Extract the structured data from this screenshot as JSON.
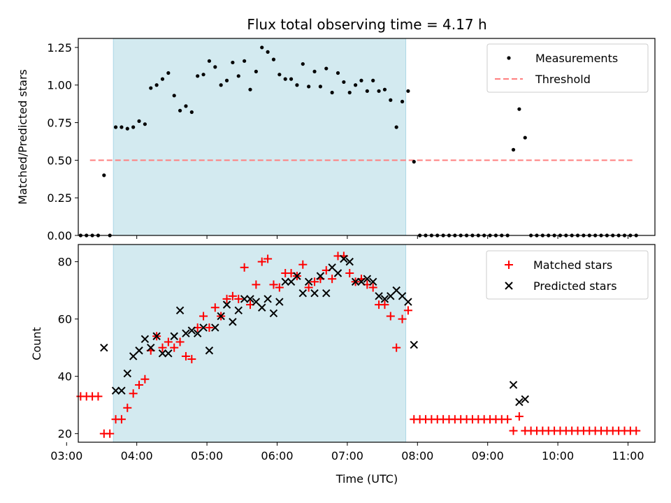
{
  "chart_data": [
    {
      "type": "scatter",
      "title": "Flux total observing time = 4.17 h",
      "xlabel": "",
      "ylabel": "Matched/Predicted stars",
      "xlim": [
        "03:00",
        "11:30"
      ],
      "ylim": [
        0,
        1.31
      ],
      "yticks": [
        "0.00",
        "0.25",
        "0.50",
        "0.75",
        "1.00",
        "1.25"
      ],
      "shaded_span": [
        "03:40",
        "07:50"
      ],
      "shaded_color": "#d3eaf0",
      "legend_position": "top-right",
      "series": [
        {
          "name": "Measurements",
          "marker": "dot",
          "color": "#000000",
          "points": [
            [
              "03:12",
              0
            ],
            [
              "03:17",
              0
            ],
            [
              "03:22",
              0
            ],
            [
              "03:27",
              0
            ],
            [
              "03:32",
              0.4
            ],
            [
              "03:37",
              0
            ],
            [
              "03:42",
              0.72
            ],
            [
              "03:47",
              0.72
            ],
            [
              "03:52",
              0.71
            ],
            [
              "03:57",
              0.72
            ],
            [
              "04:02",
              0.76
            ],
            [
              "04:07",
              0.74
            ],
            [
              "04:12",
              0.98
            ],
            [
              "04:17",
              1.0
            ],
            [
              "04:22",
              1.04
            ],
            [
              "04:27",
              1.08
            ],
            [
              "04:32",
              0.93
            ],
            [
              "04:37",
              0.83
            ],
            [
              "04:42",
              0.86
            ],
            [
              "04:47",
              0.82
            ],
            [
              "04:52",
              1.06
            ],
            [
              "04:57",
              1.07
            ],
            [
              "05:02",
              1.16
            ],
            [
              "05:07",
              1.12
            ],
            [
              "05:12",
              1.0
            ],
            [
              "05:17",
              1.03
            ],
            [
              "05:22",
              1.15
            ],
            [
              "05:27",
              1.06
            ],
            [
              "05:32",
              1.16
            ],
            [
              "05:37",
              0.97
            ],
            [
              "05:42",
              1.09
            ],
            [
              "05:47",
              1.25
            ],
            [
              "05:52",
              1.22
            ],
            [
              "05:57",
              1.17
            ],
            [
              "06:02",
              1.07
            ],
            [
              "06:07",
              1.04
            ],
            [
              "06:12",
              1.04
            ],
            [
              "06:17",
              1.0
            ],
            [
              "06:22",
              1.14
            ],
            [
              "06:27",
              0.99
            ],
            [
              "06:32",
              1.09
            ],
            [
              "06:37",
              0.99
            ],
            [
              "06:42",
              1.11
            ],
            [
              "06:47",
              0.95
            ],
            [
              "06:52",
              1.08
            ],
            [
              "06:57",
              1.02
            ],
            [
              "07:02",
              0.95
            ],
            [
              "07:07",
              1.0
            ],
            [
              "07:12",
              1.03
            ],
            [
              "07:17",
              0.96
            ],
            [
              "07:22",
              1.03
            ],
            [
              "07:27",
              0.96
            ],
            [
              "07:32",
              0.97
            ],
            [
              "07:37",
              0.9
            ],
            [
              "07:42",
              0.72
            ],
            [
              "07:47",
              0.89
            ],
            [
              "07:52",
              0.96
            ],
            [
              "07:57",
              0.49
            ],
            [
              "08:02",
              0
            ],
            [
              "08:07",
              0
            ],
            [
              "08:12",
              0
            ],
            [
              "08:17",
              0
            ],
            [
              "08:22",
              0
            ],
            [
              "08:27",
              0
            ],
            [
              "08:32",
              0
            ],
            [
              "08:37",
              0
            ],
            [
              "08:42",
              0
            ],
            [
              "08:47",
              0
            ],
            [
              "08:52",
              0
            ],
            [
              "08:57",
              0
            ],
            [
              "09:02",
              0
            ],
            [
              "09:07",
              0
            ],
            [
              "09:12",
              0
            ],
            [
              "09:17",
              0
            ],
            [
              "09:22",
              0.57
            ],
            [
              "09:27",
              0.84
            ],
            [
              "09:32",
              0.65
            ],
            [
              "09:37",
              0
            ],
            [
              "09:42",
              0
            ],
            [
              "09:47",
              0
            ],
            [
              "09:52",
              0
            ],
            [
              "09:57",
              0
            ],
            [
              "10:02",
              0
            ],
            [
              "10:07",
              0
            ],
            [
              "10:12",
              0
            ],
            [
              "10:17",
              0
            ],
            [
              "10:22",
              0
            ],
            [
              "10:27",
              0
            ],
            [
              "10:32",
              0
            ],
            [
              "10:37",
              0
            ],
            [
              "10:42",
              0
            ],
            [
              "10:47",
              0
            ],
            [
              "10:52",
              0
            ],
            [
              "10:57",
              0
            ],
            [
              "11:02",
              0
            ],
            [
              "11:07",
              0
            ]
          ]
        },
        {
          "name": "Threshold",
          "marker": "dashed-line",
          "color": "#ff7f7f",
          "points": [
            [
              "03:20",
              0.5
            ],
            [
              "11:05",
              0.5
            ]
          ]
        }
      ]
    },
    {
      "type": "scatter",
      "title": "",
      "xlabel": "Time (UTC)",
      "ylabel": "Count",
      "xlim": [
        "03:00",
        "11:30"
      ],
      "ylim": [
        17,
        86
      ],
      "yticks": [
        "20",
        "40",
        "60",
        "80"
      ],
      "xticks": [
        "03:00",
        "04:00",
        "05:00",
        "06:00",
        "07:00",
        "08:00",
        "09:00",
        "10:00",
        "11:00"
      ],
      "shaded_span": [
        "03:40",
        "07:50"
      ],
      "shaded_color": "#d3eaf0",
      "legend_position": "top-right",
      "series": [
        {
          "name": "Matched stars",
          "marker": "plus",
          "color": "#ff0000",
          "points": [
            [
              "03:12",
              33
            ],
            [
              "03:17",
              33
            ],
            [
              "03:22",
              33
            ],
            [
              "03:27",
              33
            ],
            [
              "03:32",
              20
            ],
            [
              "03:37",
              20
            ],
            [
              "03:42",
              25
            ],
            [
              "03:47",
              25
            ],
            [
              "03:52",
              29
            ],
            [
              "03:57",
              34
            ],
            [
              "04:02",
              37
            ],
            [
              "04:07",
              39
            ],
            [
              "04:12",
              49
            ],
            [
              "04:17",
              54
            ],
            [
              "04:22",
              50
            ],
            [
              "04:27",
              52
            ],
            [
              "04:32",
              50
            ],
            [
              "04:37",
              52
            ],
            [
              "04:42",
              47
            ],
            [
              "04:47",
              46
            ],
            [
              "04:52",
              57
            ],
            [
              "04:57",
              61
            ],
            [
              "05:02",
              57
            ],
            [
              "05:07",
              64
            ],
            [
              "05:12",
              61
            ],
            [
              "05:17",
              67
            ],
            [
              "05:22",
              68
            ],
            [
              "05:27",
              67
            ],
            [
              "05:32",
              78
            ],
            [
              "05:37",
              65
            ],
            [
              "05:42",
              72
            ],
            [
              "05:47",
              80
            ],
            [
              "05:52",
              81
            ],
            [
              "05:57",
              72
            ],
            [
              "06:02",
              71
            ],
            [
              "06:07",
              76
            ],
            [
              "06:12",
              76
            ],
            [
              "06:17",
              75
            ],
            [
              "06:22",
              79
            ],
            [
              "06:27",
              71
            ],
            [
              "06:32",
              73
            ],
            [
              "06:37",
              74
            ],
            [
              "06:42",
              77
            ],
            [
              "06:47",
              74
            ],
            [
              "06:52",
              82
            ],
            [
              "06:57",
              82
            ],
            [
              "07:02",
              76
            ],
            [
              "07:07",
              73
            ],
            [
              "07:12",
              74
            ],
            [
              "07:17",
              72
            ],
            [
              "07:22",
              71
            ],
            [
              "07:27",
              65
            ],
            [
              "07:32",
              65
            ],
            [
              "07:37",
              61
            ],
            [
              "07:42",
              50
            ],
            [
              "07:47",
              60
            ],
            [
              "07:52",
              63
            ],
            [
              "07:57",
              25
            ],
            [
              "08:02",
              25
            ],
            [
              "08:07",
              25
            ],
            [
              "08:12",
              25
            ],
            [
              "08:17",
              25
            ],
            [
              "08:22",
              25
            ],
            [
              "08:27",
              25
            ],
            [
              "08:32",
              25
            ],
            [
              "08:37",
              25
            ],
            [
              "08:42",
              25
            ],
            [
              "08:47",
              25
            ],
            [
              "08:52",
              25
            ],
            [
              "08:57",
              25
            ],
            [
              "09:02",
              25
            ],
            [
              "09:07",
              25
            ],
            [
              "09:12",
              25
            ],
            [
              "09:17",
              25
            ],
            [
              "09:22",
              21
            ],
            [
              "09:27",
              26
            ],
            [
              "09:32",
              21
            ],
            [
              "09:37",
              21
            ],
            [
              "09:42",
              21
            ],
            [
              "09:47",
              21
            ],
            [
              "09:52",
              21
            ],
            [
              "09:57",
              21
            ],
            [
              "10:02",
              21
            ],
            [
              "10:07",
              21
            ],
            [
              "10:12",
              21
            ],
            [
              "10:17",
              21
            ],
            [
              "10:22",
              21
            ],
            [
              "10:27",
              21
            ],
            [
              "10:32",
              21
            ],
            [
              "10:37",
              21
            ],
            [
              "10:42",
              21
            ],
            [
              "10:47",
              21
            ],
            [
              "10:52",
              21
            ],
            [
              "10:57",
              21
            ],
            [
              "11:02",
              21
            ],
            [
              "11:07",
              21
            ]
          ]
        },
        {
          "name": "Predicted stars",
          "marker": "x",
          "color": "#000000",
          "points": [
            [
              "03:32",
              50
            ],
            [
              "03:42",
              35
            ],
            [
              "03:47",
              35
            ],
            [
              "03:52",
              41
            ],
            [
              "03:57",
              47
            ],
            [
              "04:02",
              49
            ],
            [
              "04:07",
              53
            ],
            [
              "04:12",
              50
            ],
            [
              "04:17",
              54
            ],
            [
              "04:22",
              48
            ],
            [
              "04:27",
              48
            ],
            [
              "04:32",
              54
            ],
            [
              "04:37",
              63
            ],
            [
              "04:42",
              55
            ],
            [
              "04:47",
              56
            ],
            [
              "04:52",
              55
            ],
            [
              "04:57",
              57
            ],
            [
              "05:02",
              49
            ],
            [
              "05:07",
              57
            ],
            [
              "05:12",
              61
            ],
            [
              "05:17",
              65
            ],
            [
              "05:22",
              59
            ],
            [
              "05:27",
              63
            ],
            [
              "05:32",
              67
            ],
            [
              "05:37",
              67
            ],
            [
              "05:42",
              66
            ],
            [
              "05:47",
              64
            ],
            [
              "05:52",
              67
            ],
            [
              "05:57",
              62
            ],
            [
              "06:02",
              66
            ],
            [
              "06:07",
              73
            ],
            [
              "06:12",
              73
            ],
            [
              "06:17",
              75
            ],
            [
              "06:22",
              69
            ],
            [
              "06:27",
              73
            ],
            [
              "06:32",
              69
            ],
            [
              "06:37",
              75
            ],
            [
              "06:42",
              69
            ],
            [
              "06:47",
              78
            ],
            [
              "06:52",
              76
            ],
            [
              "06:57",
              81
            ],
            [
              "07:02",
              80
            ],
            [
              "07:07",
              73
            ],
            [
              "07:12",
              73
            ],
            [
              "07:17",
              74
            ],
            [
              "07:22",
              73
            ],
            [
              "07:27",
              68
            ],
            [
              "07:32",
              67
            ],
            [
              "07:37",
              68
            ],
            [
              "07:42",
              70
            ],
            [
              "07:47",
              68
            ],
            [
              "07:52",
              66
            ],
            [
              "07:57",
              51
            ],
            [
              "09:22",
              37
            ],
            [
              "09:27",
              31
            ],
            [
              "09:32",
              32
            ]
          ]
        }
      ]
    }
  ]
}
